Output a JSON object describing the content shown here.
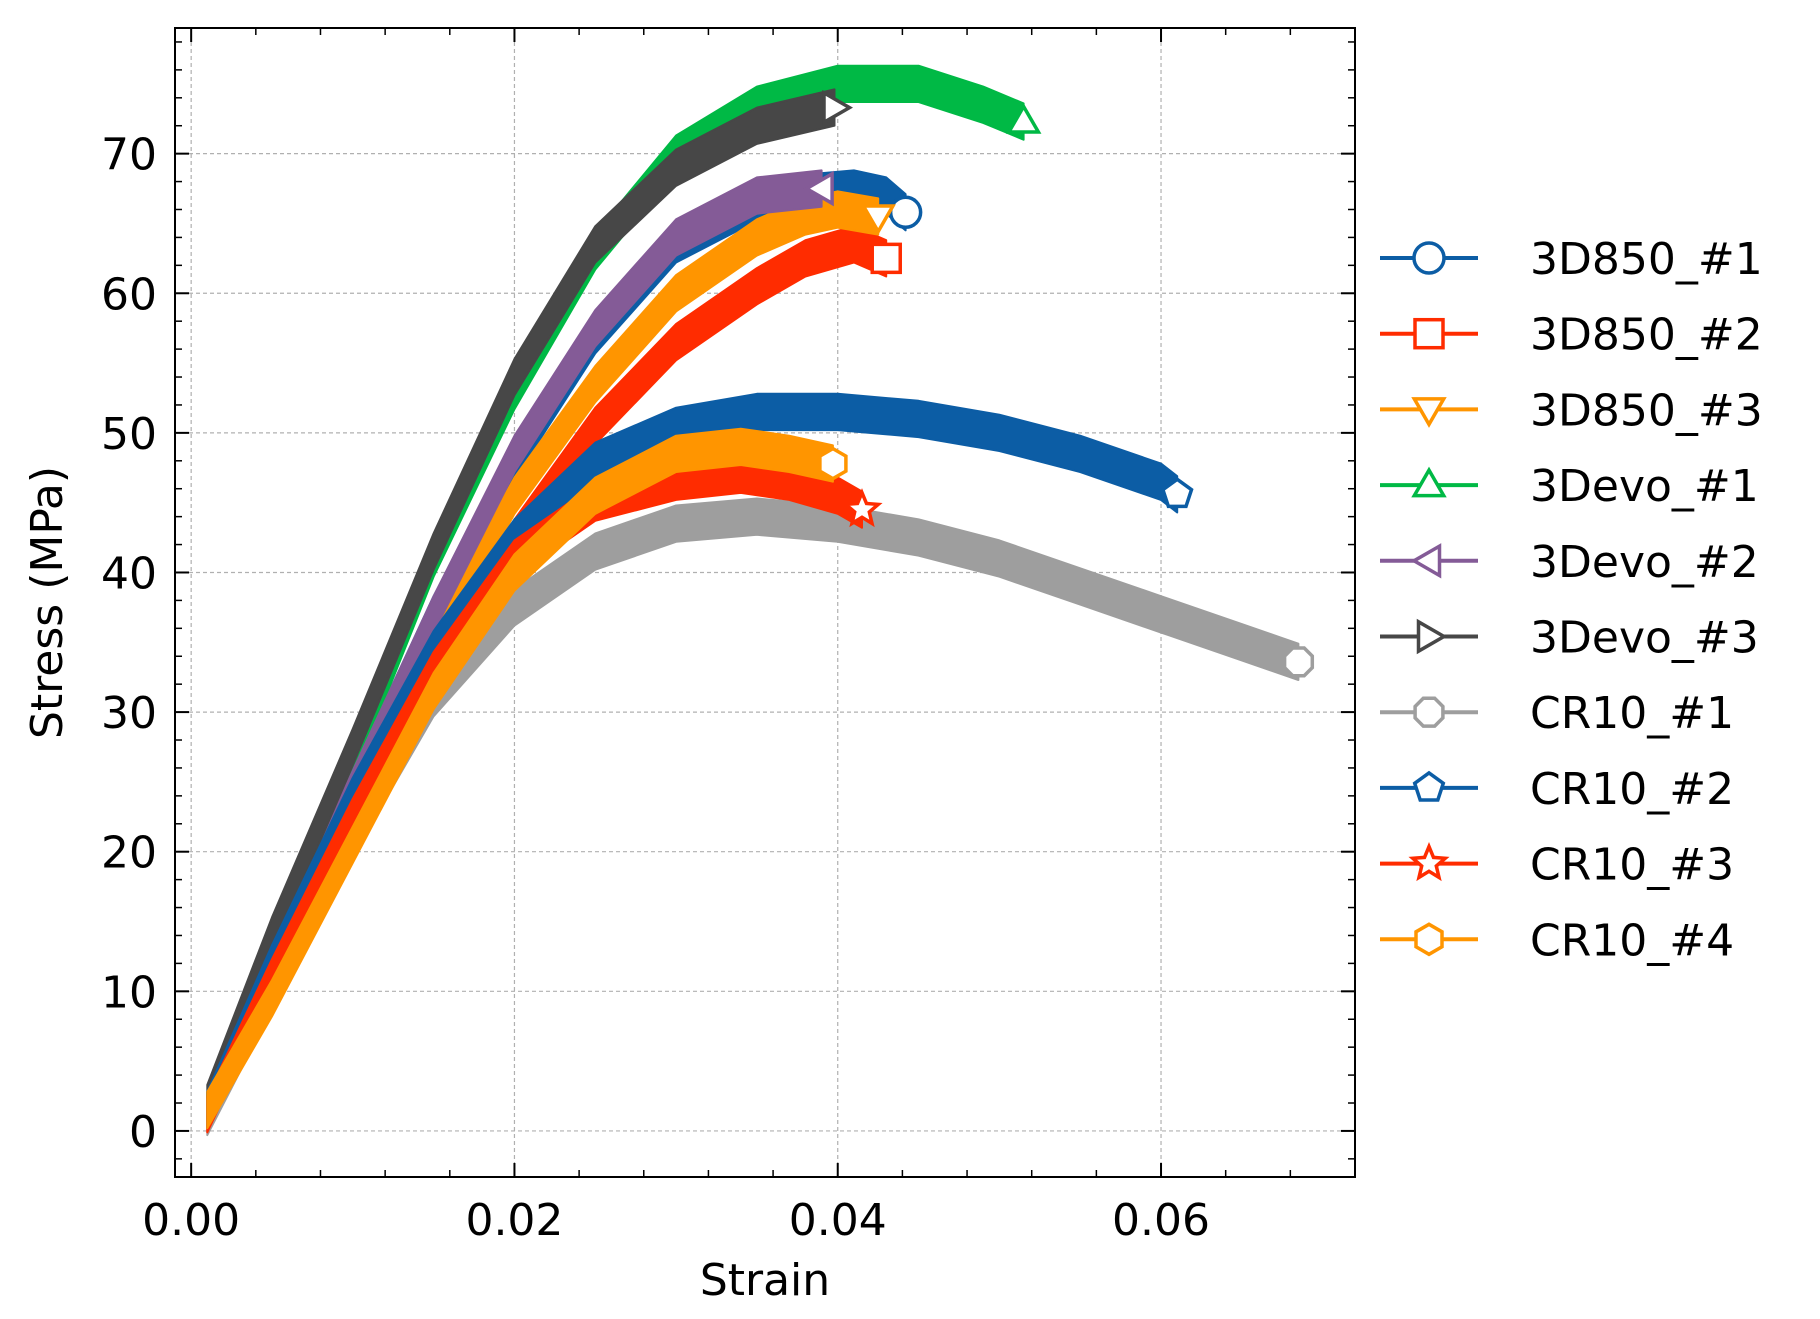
{
  "chart_data": {
    "type": "line",
    "title": "",
    "xlabel": "Strain",
    "ylabel": "Stress (MPa)",
    "xlim": [
      -0.001,
      0.072
    ],
    "ylim": [
      -3.3,
      79
    ],
    "xticks": [
      0.0,
      0.02,
      0.04,
      0.06
    ],
    "xtick_labels": [
      "0.00",
      "0.02",
      "0.04",
      "0.06"
    ],
    "yticks": [
      0,
      10,
      20,
      30,
      40,
      50,
      60,
      70
    ],
    "ytick_labels": [
      "0",
      "10",
      "20",
      "30",
      "40",
      "50",
      "60",
      "70"
    ],
    "grid": true,
    "legend_position": "outside-right",
    "series": [
      {
        "name": "3D850_#1",
        "color": "#0C5DA5",
        "marker": "circle",
        "band": 2.6,
        "points": [
          [
            0.001,
            1.5
          ],
          [
            0.005,
            12
          ],
          [
            0.01,
            24.5
          ],
          [
            0.015,
            37
          ],
          [
            0.02,
            48
          ],
          [
            0.025,
            57
          ],
          [
            0.03,
            63.5
          ],
          [
            0.035,
            66.5
          ],
          [
            0.038,
            67.2
          ],
          [
            0.041,
            67.5
          ],
          [
            0.043,
            67
          ],
          [
            0.0442,
            65.8
          ]
        ]
      },
      {
        "name": "3D850_#2",
        "color": "#FF2C00",
        "marker": "square",
        "band": 2.6,
        "points": [
          [
            0.001,
            1.2
          ],
          [
            0.005,
            10.5
          ],
          [
            0.01,
            22
          ],
          [
            0.015,
            33
          ],
          [
            0.02,
            42.5
          ],
          [
            0.025,
            50.5
          ],
          [
            0.03,
            56.5
          ],
          [
            0.035,
            60.5
          ],
          [
            0.038,
            62.5
          ],
          [
            0.041,
            63.5
          ],
          [
            0.043,
            62.5
          ]
        ]
      },
      {
        "name": "3D850_#3",
        "color": "#FF9500",
        "marker": "triangle_down",
        "band": 2.6,
        "points": [
          [
            0.001,
            1.5
          ],
          [
            0.005,
            11
          ],
          [
            0.01,
            23
          ],
          [
            0.015,
            35
          ],
          [
            0.02,
            45.5
          ],
          [
            0.025,
            53.5
          ],
          [
            0.03,
            60
          ],
          [
            0.035,
            64
          ],
          [
            0.038,
            65.5
          ],
          [
            0.04,
            66
          ],
          [
            0.0425,
            65.5
          ]
        ]
      },
      {
        "name": "3Devo_#1",
        "color": "#00B945",
        "marker": "triangle_up",
        "band": 2.6,
        "points": [
          [
            0.001,
            1.5
          ],
          [
            0.005,
            13
          ],
          [
            0.01,
            26.5
          ],
          [
            0.015,
            41
          ],
          [
            0.02,
            53
          ],
          [
            0.025,
            63
          ],
          [
            0.03,
            70
          ],
          [
            0.035,
            73.5
          ],
          [
            0.04,
            75
          ],
          [
            0.045,
            75
          ],
          [
            0.049,
            73.5
          ],
          [
            0.0515,
            72.3
          ]
        ]
      },
      {
        "name": "3Devo_#2",
        "color": "#845B97",
        "marker": "triangle_left",
        "band": 2.6,
        "points": [
          [
            0.001,
            1.5
          ],
          [
            0.005,
            12
          ],
          [
            0.01,
            24.5
          ],
          [
            0.015,
            37
          ],
          [
            0.02,
            48.5
          ],
          [
            0.025,
            57.5
          ],
          [
            0.03,
            64
          ],
          [
            0.035,
            67
          ],
          [
            0.039,
            67.5
          ]
        ]
      },
      {
        "name": "3Devo_#3",
        "color": "#474747",
        "marker": "triangle_right",
        "band": 2.6,
        "points": [
          [
            0.001,
            2
          ],
          [
            0.005,
            14
          ],
          [
            0.01,
            27.5
          ],
          [
            0.015,
            41.5
          ],
          [
            0.02,
            54
          ],
          [
            0.025,
            63.5
          ],
          [
            0.03,
            69
          ],
          [
            0.035,
            72
          ],
          [
            0.0398,
            73.3
          ]
        ]
      },
      {
        "name": "CR10_#1",
        "color": "#9E9E9E",
        "marker": "octagon",
        "band": 2.6,
        "points": [
          [
            0.001,
            1
          ],
          [
            0.005,
            10
          ],
          [
            0.01,
            21
          ],
          [
            0.015,
            31
          ],
          [
            0.02,
            37.5
          ],
          [
            0.025,
            41.5
          ],
          [
            0.03,
            43.5
          ],
          [
            0.035,
            44
          ],
          [
            0.04,
            43.5
          ],
          [
            0.045,
            42.5
          ],
          [
            0.05,
            41
          ],
          [
            0.055,
            39
          ],
          [
            0.06,
            37
          ],
          [
            0.065,
            35
          ],
          [
            0.0685,
            33.6
          ]
        ]
      },
      {
        "name": "CR10_#2",
        "color": "#0C5DA5",
        "marker": "pentagon",
        "band": 2.6,
        "points": [
          [
            0.001,
            1.5
          ],
          [
            0.005,
            12
          ],
          [
            0.01,
            24
          ],
          [
            0.015,
            34.5
          ],
          [
            0.02,
            42.5
          ],
          [
            0.025,
            48
          ],
          [
            0.03,
            50.5
          ],
          [
            0.035,
            51.5
          ],
          [
            0.04,
            51.5
          ],
          [
            0.045,
            51
          ],
          [
            0.05,
            50
          ],
          [
            0.055,
            48.5
          ],
          [
            0.06,
            46.5
          ],
          [
            0.061,
            45.6
          ]
        ]
      },
      {
        "name": "CR10_#3",
        "color": "#FF2C00",
        "marker": "star",
        "band": 2.6,
        "points": [
          [
            0.001,
            1.2
          ],
          [
            0.005,
            11
          ],
          [
            0.01,
            22.5
          ],
          [
            0.015,
            33
          ],
          [
            0.02,
            41
          ],
          [
            0.025,
            45
          ],
          [
            0.03,
            46.5
          ],
          [
            0.034,
            47
          ],
          [
            0.037,
            46.5
          ],
          [
            0.04,
            45.5
          ],
          [
            0.0415,
            44.5
          ]
        ]
      },
      {
        "name": "CR10_#4",
        "color": "#FF9500",
        "marker": "hexagon",
        "band": 2.6,
        "points": [
          [
            0.001,
            1.5
          ],
          [
            0.005,
            9.5
          ],
          [
            0.01,
            20.5
          ],
          [
            0.015,
            31.5
          ],
          [
            0.02,
            40
          ],
          [
            0.025,
            45.5
          ],
          [
            0.03,
            48.5
          ],
          [
            0.034,
            49
          ],
          [
            0.037,
            48.5
          ],
          [
            0.0397,
            47.8
          ]
        ]
      }
    ]
  }
}
